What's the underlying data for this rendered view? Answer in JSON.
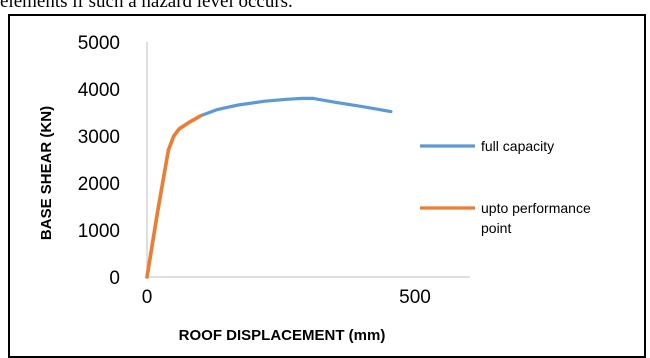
{
  "top_text": "elements if such a hazard level occurs.",
  "chart_data": {
    "type": "line",
    "xlabel": "ROOF DISPLACEMENT (mm)",
    "ylabel": "BASE SHEAR (KN)",
    "xlim": [
      0,
      500
    ],
    "ylim": [
      0,
      5000
    ],
    "x_ticks": [
      "0",
      "500"
    ],
    "y_ticks": [
      "0",
      "1000",
      "2000",
      "3000",
      "4000",
      "5000"
    ],
    "grid": false,
    "legend_position": "right",
    "series": [
      {
        "name": "full capacity",
        "color": "#5B9BD5",
        "x": [
          0,
          20,
          40,
          50,
          60,
          80,
          100,
          130,
          170,
          220,
          260,
          290,
          310,
          350,
          400,
          455
        ],
        "y": [
          0,
          1400,
          2700,
          3000,
          3150,
          3300,
          3430,
          3560,
          3660,
          3740,
          3780,
          3800,
          3800,
          3720,
          3630,
          3520
        ]
      },
      {
        "name": "upto performance point",
        "color": "#ED7D31",
        "x": [
          0,
          20,
          40,
          50,
          60,
          80,
          100
        ],
        "y": [
          0,
          1400,
          2700,
          3000,
          3150,
          3300,
          3430
        ]
      }
    ]
  }
}
